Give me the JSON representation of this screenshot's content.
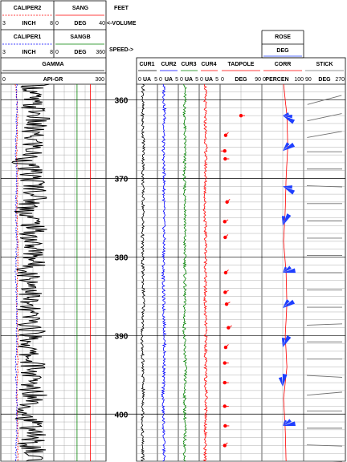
{
  "header": {
    "caliper2": {
      "name": "CALIPER2",
      "min": "3",
      "unit": "INCH",
      "max": "8"
    },
    "sang": {
      "name": "SANG",
      "min": "0",
      "unit": "DEG",
      "max": "40"
    },
    "caliper1": {
      "name": "CALIPER1",
      "min": "3",
      "unit": "INCH",
      "max": "8"
    },
    "sangb": {
      "name": "SANGB",
      "min": "0",
      "unit": "DEG",
      "max": "360"
    },
    "gamma": {
      "name": "GAMMA",
      "min": "0",
      "unit": "API-GR",
      "max": "300"
    },
    "depth": {
      "name": "FEET",
      "volume": "<-VOLUME",
      "speed": "SPEED->"
    },
    "cur1": {
      "name": "CUR1",
      "min": "0",
      "unit": "UA",
      "max": "5"
    },
    "cur2": {
      "name": "CUR2",
      "min": "0",
      "unit": "UA",
      "max": "5"
    },
    "cur3": {
      "name": "CUR3",
      "min": "0",
      "unit": "UA",
      "max": "5"
    },
    "cur4": {
      "name": "CUR4",
      "min": "0",
      "unit": "UA",
      "max": "5"
    },
    "tadpole": {
      "name": "TADPOLE",
      "min": "0",
      "unit": "DEG",
      "max": "90"
    },
    "rose": {
      "name": "ROSE",
      "unit": "DEG"
    },
    "corr": {
      "name": "CORR",
      "min": "0",
      "unit": "PERCEN",
      "max": "100"
    },
    "stick": {
      "name": "STICK",
      "min": "90",
      "unit": "DEG",
      "max": "270"
    }
  },
  "colors": {
    "caliper2": "#ff0000",
    "caliper1": "#0000ff",
    "gamma": "#000000",
    "sang": "#ff0000",
    "sangb": "#008000",
    "cur1": "#000000",
    "cur2": "#0000ff",
    "cur3": "#008000",
    "cur4": "#ff0000",
    "tadpole": "#ff0000",
    "rose": "#1f3fff",
    "corr": "#ff0000",
    "stick": "#707070",
    "grid": "#9a9a9a"
  },
  "chart_data": {
    "type": "line",
    "depth_unit": "FEET",
    "depth_range": [
      358,
      406
    ],
    "depth_ticks": [
      360,
      370,
      380,
      390,
      400
    ],
    "series": [
      {
        "name": "CALIPER2",
        "unit": "INCH",
        "scale": [
          3,
          8
        ],
        "depth": [
          358,
          362,
          366,
          370,
          374,
          378,
          382,
          386,
          390,
          394,
          398,
          402,
          406
        ],
        "values": [
          4.4,
          4.6,
          4.5,
          4.6,
          4.5,
          4.6,
          4.6,
          4.5,
          4.6,
          4.6,
          4.5,
          4.6,
          4.6
        ]
      },
      {
        "name": "CALIPER1",
        "unit": "INCH",
        "scale": [
          3,
          8
        ],
        "depth": [
          358,
          362,
          366,
          370,
          374,
          378,
          382,
          386,
          390,
          394,
          398,
          402,
          406
        ],
        "values": [
          4.5,
          4.5,
          4.4,
          4.5,
          4.4,
          4.5,
          4.4,
          4.5,
          4.5,
          4.4,
          4.5,
          4.5,
          4.4
        ]
      },
      {
        "name": "GAMMA",
        "unit": "API-GR",
        "scale": [
          0,
          300
        ],
        "depth": [
          358,
          360,
          362,
          364,
          366,
          368,
          370,
          372,
          374,
          376,
          378,
          380,
          382,
          384,
          386,
          388,
          390,
          392,
          394,
          396,
          398,
          400,
          402,
          404,
          406
        ],
        "values": [
          100,
          80,
          105,
          85,
          95,
          70,
          90,
          105,
          75,
          95,
          85,
          100,
          80,
          95,
          70,
          85,
          90,
          75,
          95,
          80,
          105,
          70,
          95,
          85,
          100
        ]
      },
      {
        "name": "SANG",
        "unit": "DEG",
        "scale": [
          0,
          40
        ],
        "depth": [
          358,
          406
        ],
        "values": [
          28,
          28
        ]
      },
      {
        "name": "SANGB",
        "unit": "DEG",
        "scale": [
          0,
          360
        ],
        "depth": [
          358,
          406
        ],
        "values": [
          160,
          160
        ]
      },
      {
        "name": "CUR1",
        "unit": "UA",
        "scale": [
          0,
          5
        ],
        "depth": [
          358,
          362,
          366,
          370,
          374,
          378,
          382,
          386,
          390,
          394,
          398,
          402,
          406
        ],
        "values": [
          1.6,
          1.4,
          1.7,
          1.5,
          1.6,
          1.4,
          1.5,
          1.7,
          1.3,
          1.5,
          1.6,
          1.4,
          1.5
        ]
      },
      {
        "name": "CUR2",
        "unit": "UA",
        "scale": [
          0,
          5
        ],
        "depth": [
          358,
          362,
          366,
          370,
          374,
          378,
          382,
          386,
          390,
          394,
          398,
          402,
          406
        ],
        "values": [
          1.5,
          1.7,
          1.4,
          1.6,
          1.5,
          1.6,
          1.4,
          1.5,
          1.7,
          1.6,
          1.3,
          1.5,
          1.6
        ]
      },
      {
        "name": "CUR3",
        "unit": "UA",
        "scale": [
          0,
          5
        ],
        "depth": [
          358,
          362,
          366,
          370,
          374,
          378,
          382,
          386,
          390,
          394,
          398,
          402,
          406
        ],
        "values": [
          1.6,
          1.5,
          1.6,
          1.4,
          1.7,
          1.5,
          1.6,
          1.5,
          1.4,
          1.7,
          1.5,
          1.6,
          1.5
        ]
      },
      {
        "name": "CUR4",
        "unit": "UA",
        "scale": [
          0,
          5
        ],
        "depth": [
          358,
          362,
          366,
          370,
          374,
          378,
          382,
          386,
          390,
          394,
          398,
          402,
          406
        ],
        "values": [
          1.5,
          1.4,
          1.6,
          1.5,
          1.3,
          1.6,
          1.5,
          1.4,
          1.6,
          1.5,
          1.7,
          1.5,
          1.4
        ]
      },
      {
        "name": "CORR",
        "unit": "PERCEN",
        "scale": [
          0,
          100
        ],
        "depth": [
          358,
          362,
          366,
          370,
          374,
          378,
          382,
          386,
          390,
          394,
          398,
          402,
          406
        ],
        "values": [
          52,
          60,
          62,
          58,
          56,
          52,
          58,
          60,
          56,
          60,
          52,
          56,
          58
        ]
      }
    ],
    "tadpoles": [
      {
        "depth": 362,
        "dip": 45,
        "azimuth": 90
      },
      {
        "depth": 364.5,
        "dip": 12,
        "azimuth": 45
      },
      {
        "depth": 366.5,
        "dip": 10,
        "azimuth": 270
      },
      {
        "depth": 367.5,
        "dip": 11,
        "azimuth": 90
      },
      {
        "depth": 373,
        "dip": 15,
        "azimuth": 45
      },
      {
        "depth": 375.5,
        "dip": 10,
        "azimuth": 60
      },
      {
        "depth": 377.5,
        "dip": 11,
        "azimuth": 45
      },
      {
        "depth": 382,
        "dip": 12,
        "azimuth": 45
      },
      {
        "depth": 384.5,
        "dip": 11,
        "azimuth": 60
      },
      {
        "depth": 386,
        "dip": 14,
        "azimuth": 60
      },
      {
        "depth": 389,
        "dip": 18,
        "azimuth": 60
      },
      {
        "depth": 391.5,
        "dip": 12,
        "azimuth": 45
      },
      {
        "depth": 393.5,
        "dip": 10,
        "azimuth": 90
      },
      {
        "depth": 396,
        "dip": 10,
        "azimuth": 90
      },
      {
        "depth": 399,
        "dip": 10,
        "azimuth": 90
      },
      {
        "depth": 401.5,
        "dip": 11,
        "azimuth": 90
      },
      {
        "depth": 404,
        "dip": 10,
        "azimuth": 45
      }
    ],
    "rose": [
      {
        "depth": 362,
        "azimuth": 60,
        "count": 3
      },
      {
        "depth": 366.5,
        "azimuth": 120,
        "count": 2
      },
      {
        "depth": 371,
        "azimuth": 60,
        "count": 2
      },
      {
        "depth": 376,
        "azimuth": 150,
        "count": 2
      },
      {
        "depth": 382,
        "azimuth": 100,
        "count": 3
      },
      {
        "depth": 386.5,
        "azimuth": 120,
        "count": 2
      },
      {
        "depth": 391.5,
        "azimuth": 150,
        "count": 2
      },
      {
        "depth": 396.5,
        "azimuth": 170,
        "count": 2
      },
      {
        "depth": 401.5,
        "azimuth": 100,
        "count": 3
      }
    ],
    "sticks_deg": [
      -15,
      -12,
      -10,
      0,
      0,
      2,
      0,
      0,
      0,
      0,
      0,
      0,
      0,
      -2,
      0,
      0,
      3,
      -5,
      0,
      0,
      2,
      -3
    ]
  }
}
